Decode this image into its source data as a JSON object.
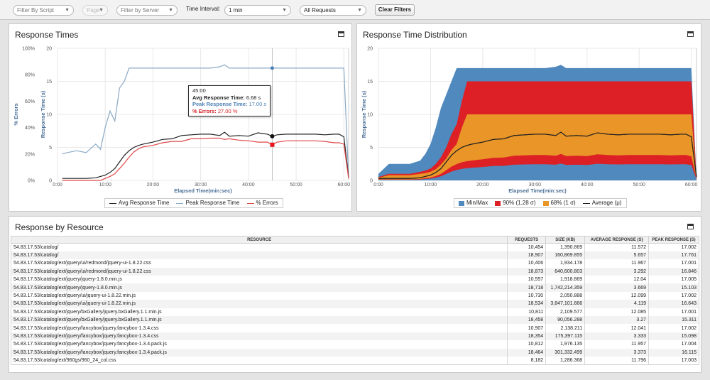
{
  "filters": {
    "script": "Filter By Script",
    "page": "Page",
    "server": "Filter by Server",
    "interval_label": "Time Interval:",
    "interval_value": "1 min",
    "requests_value": "All Requests",
    "clear": "Clear Filters"
  },
  "response_times": {
    "title": "Response Times",
    "tooltip": {
      "time": "45:00",
      "avg_label": "Avg Response Time:",
      "avg_value": "6.68 s",
      "peak_label": "Peak Response Time:",
      "peak_value": "17.00 s",
      "err_label": "% Errors:",
      "err_value": "27.00 %"
    },
    "legend": [
      "Avg Response Time",
      "Peak Response Time",
      "% Errors"
    ]
  },
  "distribution": {
    "title": "Response Time Distribution",
    "legend": [
      "Min/Max",
      "90% (1.28 σ)",
      "68% (1 σ)",
      "Average (μ)"
    ]
  },
  "colors": {
    "avg": "#222222",
    "peak": "#8aa9c4",
    "err": "#e04848",
    "minmax": "#5089bd",
    "p90": "#dd1f26",
    "p68": "#e99527",
    "marker_err": "#e8141b",
    "marker_peak": "#4a7fb5"
  },
  "chart_data": [
    {
      "type": "line",
      "title": "Response Times",
      "xlabel": "Elapsed Time(min:sec)",
      "ylabel": "Response Time (s)",
      "y2label": "% Errors",
      "x_ticks": [
        "0:00",
        "10:00",
        "20:00",
        "30:00",
        "40:00",
        "50:00",
        "60:00"
      ],
      "y_ticks": [
        "0",
        "5",
        "10",
        "15",
        "20"
      ],
      "y2_ticks": [
        "0%",
        "20%",
        "40%",
        "60%",
        "80%",
        "100%"
      ],
      "xlim": [
        0,
        61
      ],
      "ylim": [
        0,
        20
      ],
      "x": [
        0,
        1,
        2,
        4,
        6,
        8,
        9,
        10,
        11,
        12,
        13,
        14,
        15,
        16,
        17,
        18,
        20,
        22,
        24,
        26,
        28,
        30,
        32,
        34,
        35,
        36,
        38,
        40,
        42,
        44,
        45,
        46,
        48,
        50,
        52,
        54,
        56,
        58,
        59,
        60,
        61
      ],
      "series": [
        {
          "name": "Peak Response Time",
          "values": [
            null,
            4,
            4.2,
            4.5,
            4.2,
            5.5,
            4.7,
            8,
            10.5,
            9,
            14,
            15,
            17,
            17,
            17,
            17,
            17,
            17,
            17,
            17,
            17,
            17,
            17,
            17.2,
            17.5,
            17,
            17,
            17,
            17,
            17,
            17,
            17,
            17,
            17,
            17,
            17,
            17,
            17,
            17,
            17,
            0.3
          ]
        },
        {
          "name": "Avg Response Time",
          "values": [
            null,
            0.3,
            0.3,
            0.3,
            0.3,
            0.4,
            0.6,
            0.8,
            1.2,
            1.8,
            2.8,
            3.8,
            4.5,
            5,
            5.3,
            5.5,
            5.8,
            6.2,
            6.3,
            6.8,
            6.9,
            7,
            7,
            6.8,
            7.3,
            6.7,
            6.8,
            6.7,
            7.2,
            7,
            6.68,
            6.9,
            7,
            7,
            7,
            7,
            6.9,
            7,
            7,
            6.6,
            0.5
          ]
        },
        {
          "name": "% Errors",
          "values": [
            null,
            0,
            0,
            0,
            0,
            0,
            0,
            0.3,
            0.6,
            1,
            1.8,
            2.6,
            3.5,
            4.3,
            4.8,
            5.1,
            5.3,
            5.7,
            5.9,
            5.9,
            6.3,
            6.3,
            6.4,
            6.4,
            6.2,
            6.3,
            6.1,
            6,
            5.8,
            5.8,
            5.4,
            5.8,
            6,
            6,
            6,
            6,
            5.9,
            5.7,
            5.7,
            5.5,
            0.3
          ]
        }
      ],
      "grid": true,
      "legend_position": "bottom"
    },
    {
      "type": "area",
      "title": "Response Time Distribution",
      "xlabel": "Elapsed Time(min:sec)",
      "ylabel": "Response Time (s)",
      "x_ticks": [
        "0:00",
        "10:00",
        "20:00",
        "30:00",
        "40:00",
        "50:00",
        "60:00"
      ],
      "y_ticks": [
        "0",
        "5",
        "10",
        "15",
        "20"
      ],
      "xlim": [
        0,
        61
      ],
      "ylim": [
        0,
        20
      ],
      "x": [
        0,
        2,
        4,
        6,
        8,
        9,
        10,
        11,
        12,
        13,
        14,
        15,
        16,
        17,
        18,
        20,
        22,
        24,
        26,
        28,
        30,
        32,
        34,
        35,
        36,
        38,
        40,
        42,
        44,
        46,
        48,
        50,
        52,
        54,
        56,
        58,
        59,
        60,
        61
      ],
      "series": [
        {
          "name": "Min/Max",
          "values": [
            1,
            2.5,
            2.5,
            2.5,
            3,
            4,
            5.5,
            8,
            11,
            13,
            15,
            17,
            17,
            17,
            17,
            17,
            17,
            17,
            17,
            17,
            17,
            17,
            17.2,
            17.5,
            17,
            17,
            17,
            17,
            17,
            17,
            17,
            17,
            17,
            17,
            17,
            17,
            17,
            17,
            0.3
          ]
        },
        {
          "name": "90% (1.28 σ)",
          "values": [
            0.5,
            1,
            1,
            1,
            1.3,
            1.5,
            1.8,
            2.5,
            3.5,
            5,
            7,
            8.5,
            12,
            15,
            15,
            15,
            15,
            15,
            15,
            15,
            15,
            15,
            15,
            15,
            15,
            15,
            15,
            15,
            15,
            15,
            15,
            15,
            15,
            15,
            15,
            15,
            15,
            15,
            0.2
          ]
        },
        {
          "name": "68% (1 σ)",
          "values": [
            0.4,
            0.8,
            0.8,
            0.8,
            1,
            1.1,
            1.3,
            1.7,
            2.4,
            3.3,
            4.6,
            5.5,
            8,
            10,
            10,
            10,
            10,
            10,
            10,
            10,
            10,
            10,
            10,
            10,
            10,
            10,
            10,
            10,
            10,
            10,
            10,
            10,
            10,
            10,
            10,
            10,
            10,
            10,
            0.2
          ]
        },
        {
          "name": "Average (μ)",
          "values": [
            0.3,
            0.3,
            0.3,
            0.3,
            0.4,
            0.6,
            0.8,
            1.2,
            1.8,
            2.8,
            3.8,
            4.5,
            5,
            5.3,
            5.5,
            5.8,
            6.2,
            6.3,
            6.8,
            6.9,
            7,
            7,
            6.8,
            7.3,
            6.7,
            6.8,
            6.7,
            7.2,
            7,
            6.9,
            7,
            7,
            7,
            7,
            6.9,
            7,
            7,
            6.6,
            0.5
          ]
        }
      ],
      "grid": true,
      "legend_position": "bottom"
    },
    {
      "type": "table",
      "title": "Response by Resource",
      "columns": [
        "RESOURCE",
        "REQUESTS",
        "SIZE (KB)",
        "AVERAGE RESPONSE (S)",
        "PEAK RESPONSE (S)"
      ],
      "rows": [
        [
          "54.83.17.53/catalog/",
          "10,454",
          "1,390.869",
          "11.572",
          "17.002"
        ],
        [
          "54.83.17.53/catalog/",
          "18,907",
          "160,869.855",
          "5.657",
          "17.761"
        ],
        [
          "54.83.17.53/catalog/ext/jquery/ui/redmond/jquery-ui-1.8.22.css",
          "10,406",
          "1,934.178",
          "11.967",
          "17.001"
        ],
        [
          "54.83.17.53/catalog/ext/jquery/ui/redmond/jquery-ui-1.8.22.css",
          "18,873",
          "640,600.803",
          "3.292",
          "16.846"
        ],
        [
          "54.83.17.53/catalog/ext/jquery/jquery-1.8.0.min.js",
          "10,557",
          "1,918.869",
          "12.04",
          "17.005"
        ],
        [
          "54.83.17.53/catalog/ext/jquery/jquery-1.8.0.min.js",
          "18,718",
          "1,742,214.359",
          "3.669",
          "15.103"
        ],
        [
          "54.83.17.53/catalog/ext/jquery/ui/jquery-ui-1.8.22.min.js",
          "10,730",
          "2,050.888",
          "12.099",
          "17.002"
        ],
        [
          "54.83.17.53/catalog/ext/jquery/ui/jquery-ui-1.8.22.min.js",
          "18,534",
          "3,847,101.666",
          "4.119",
          "16.643"
        ],
        [
          "54.83.17.53/catalog/ext/jquery/bxGallery/jquery.bxGallery.1.1.min.js",
          "10,811",
          "2,109.577",
          "12.085",
          "17.001"
        ],
        [
          "54.83.17.53/catalog/ext/jquery/bxGallery/jquery.bxGallery.1.1.min.js",
          "18,458",
          "90,056.288",
          "3.27",
          "15.311"
        ],
        [
          "54.83.17.53/catalog/ext/jquery/fancybox/jquery.fancybox-1.3.4.css",
          "10,907",
          "2,138.211",
          "12.041",
          "17.002"
        ],
        [
          "54.83.17.53/catalog/ext/jquery/fancybox/jquery.fancybox-1.3.4.css",
          "18,354",
          "175,397.115",
          "3.333",
          "15.098"
        ],
        [
          "54.83.17.53/catalog/ext/jquery/fancybox/jquery.fancybox-1.3.4.pack.js",
          "10,812",
          "1,976.135",
          "11.957",
          "17.004"
        ],
        [
          "54.83.17.53/catalog/ext/jquery/fancybox/jquery.fancybox-1.3.4.pack.js",
          "18,464",
          "301,332.499",
          "3.373",
          "16.115"
        ],
        [
          "54.83.17.53/catalog/ext/960gs/960_24_col.css",
          "8,182",
          "1,286.368",
          "11.796",
          "17.003"
        ]
      ]
    }
  ]
}
